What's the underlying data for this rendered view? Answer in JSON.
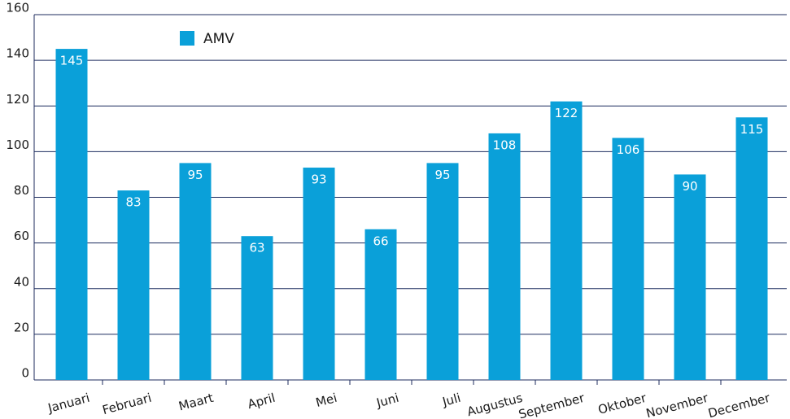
{
  "chart_data": {
    "type": "bar",
    "categories": [
      "Januari",
      "Februari",
      "Maart",
      "April",
      "Mei",
      "Juni",
      "Juli",
      "Augustus",
      "September",
      "Oktober",
      "November",
      "December"
    ],
    "series": [
      {
        "name": "AMV",
        "color": "#0aa0d9",
        "values": [
          145,
          83,
          95,
          63,
          93,
          66,
          95,
          108,
          122,
          106,
          90,
          115
        ]
      }
    ],
    "ylim": [
      0,
      160
    ],
    "yticks": [
      0,
      20,
      40,
      60,
      80,
      100,
      120,
      140,
      160
    ],
    "grid": true,
    "legend": "top-left"
  }
}
